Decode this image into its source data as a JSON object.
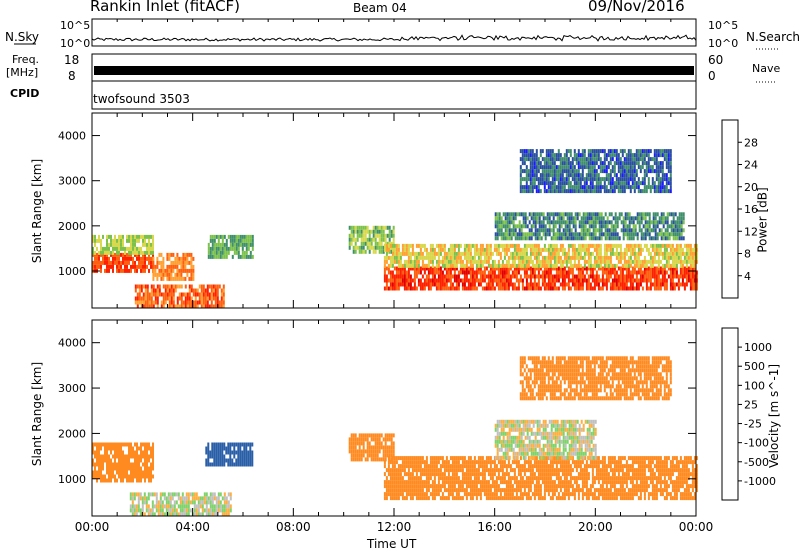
{
  "header": {
    "title": "Rankin Inlet (fitACF)",
    "beam": "Beam 04",
    "date": "09/Nov/2016"
  },
  "top_panels": {
    "nsky_label": "N.Sky",
    "nsky_ticks": [
      "10^5",
      "10^0"
    ],
    "nsearch_label": "N.Search",
    "nsearch_ticks": [
      "10^5",
      "10^0"
    ],
    "freq_label_1": "Freq.",
    "freq_label_2": "[MHz]",
    "freq_ticks": [
      "18",
      "8"
    ],
    "nave_label": "Nave",
    "nave_ticks": [
      "60",
      "0"
    ],
    "cpid_label": "CPID",
    "cpid_value": "twofsound 3503"
  },
  "colors": {
    "power_scale": [
      "#1a1aff",
      "#2a4fa0",
      "#3f8f6a",
      "#7cc24a",
      "#d8d84a",
      "#ffa030",
      "#ff6010",
      "#ff2000",
      "#e00000"
    ],
    "velocity_scale": [
      "#ff0000",
      "#ff5a10",
      "#ff8a20",
      "#ffae40",
      "#c0c0c0",
      "#7ed36a",
      "#3c9b5a",
      "#2a5fa8",
      "#1a2fcf"
    ]
  },
  "chart_data": [
    {
      "type": "heatmap",
      "title": "",
      "colorbar_label": "Power [dB]",
      "colorbar_ticks": [
        "28",
        "24",
        "20",
        "16",
        "12",
        "8",
        "4"
      ],
      "ylabel": "Slant Range [km]",
      "yticks": [
        "4000",
        "3000",
        "2000",
        "1000"
      ],
      "ylim": [
        180,
        4500
      ],
      "xlim": [
        0,
        24
      ],
      "x_unit": "hours UT",
      "bands": [
        {
          "x": [
            0.0,
            2.4
          ],
          "y": [
            1000,
            1400
          ],
          "value": 26
        },
        {
          "x": [
            0.0,
            2.4
          ],
          "y": [
            1400,
            1800
          ],
          "value": 14
        },
        {
          "x": [
            1.7,
            5.2
          ],
          "y": [
            250,
            700
          ],
          "value": 24
        },
        {
          "x": [
            2.4,
            4.0
          ],
          "y": [
            850,
            1400
          ],
          "value": 22
        },
        {
          "x": [
            4.6,
            6.4
          ],
          "y": [
            1300,
            1800
          ],
          "value": 10
        },
        {
          "x": [
            10.2,
            12.0
          ],
          "y": [
            1400,
            2000
          ],
          "value": 13
        },
        {
          "x": [
            11.6,
            24.0
          ],
          "y": [
            600,
            1100
          ],
          "value": 27
        },
        {
          "x": [
            11.6,
            24.0
          ],
          "y": [
            1100,
            1600
          ],
          "value": 17
        },
        {
          "x": [
            16.0,
            23.5
          ],
          "y": [
            1700,
            2300
          ],
          "value": 8
        },
        {
          "x": [
            17.0,
            23.0
          ],
          "y": [
            2800,
            3700
          ],
          "value": 5
        }
      ]
    },
    {
      "type": "heatmap",
      "title": "",
      "colorbar_label": "Velocity [m s^-1]",
      "colorbar_ticks": [
        "1000",
        "500",
        "100",
        "25",
        "-25",
        "-100",
        "-500",
        "-1000"
      ],
      "ylabel": "Slant Range [km]",
      "yticks": [
        "4000",
        "3000",
        "2000",
        "1000"
      ],
      "ylim": [
        180,
        4500
      ],
      "xlim": [
        0,
        24
      ],
      "x_unit": "hours UT",
      "bands": [
        {
          "x": [
            0.0,
            2.4
          ],
          "y": [
            1000,
            1800
          ],
          "value": -250
        },
        {
          "x": [
            1.5,
            5.5
          ],
          "y": [
            250,
            700
          ],
          "value": 10
        },
        {
          "x": [
            4.5,
            6.4
          ],
          "y": [
            1300,
            1800
          ],
          "value": 600
        },
        {
          "x": [
            10.2,
            12.0
          ],
          "y": [
            1400,
            2000
          ],
          "value": -250
        },
        {
          "x": [
            11.6,
            24.0
          ],
          "y": [
            600,
            1500
          ],
          "value": -300
        },
        {
          "x": [
            16.0,
            20.0
          ],
          "y": [
            1500,
            2300
          ],
          "value": 0
        },
        {
          "x": [
            17.0,
            23.0
          ],
          "y": [
            2800,
            3700
          ],
          "value": -200
        }
      ]
    }
  ],
  "xaxis": {
    "label": "Time UT",
    "ticks": [
      "00:00",
      "04:00",
      "08:00",
      "12:00",
      "16:00",
      "20:00",
      "00:00"
    ]
  }
}
